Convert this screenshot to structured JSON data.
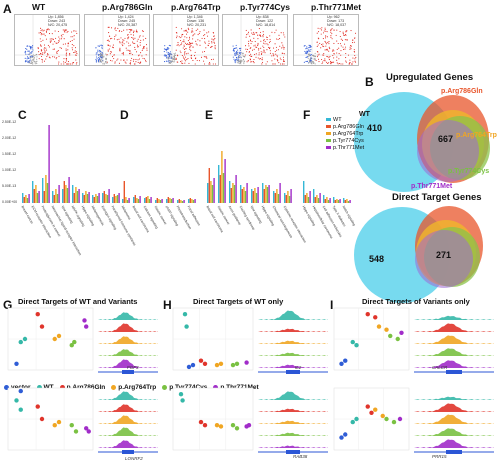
{
  "panelA": {
    "letter": "A",
    "volcanoes": [
      {
        "title": "WT",
        "stats": "Up: 1,856\nDown: 243\nN/C: 20,475"
      },
      {
        "title": "p.Arg786Gln",
        "stats": "Up: 1,424\nDown: 245\nN/C: 20,387"
      },
      {
        "title": "p.Arg764Trp",
        "stats": "Up: 1,346\nDown: 136\nN/C: 20,231"
      },
      {
        "title": "p.Tyr774Cys",
        "stats": "Up: 838\nDown: 122\nN/C: 18,814"
      },
      {
        "title": "p.Thr771Met",
        "stats": "Up: 962\nDown: 173\nN/C: 18,037"
      }
    ]
  },
  "panelB": {
    "letter": "B",
    "venn1": {
      "title": "Upregulated Genes",
      "wt_only": "410",
      "shared": "667",
      "labels": [
        "WT",
        "p.Arg786Gln",
        "p.Arg764Trp",
        "p.Tyr774Cys",
        "p.Thr771Met"
      ]
    },
    "venn2": {
      "title": "Direct Target Genes",
      "wt_only": "548",
      "shared": "271"
    }
  },
  "panelsCDEF": {
    "letters": [
      "C",
      "D",
      "E",
      "F"
    ],
    "legend": [
      "WT",
      "p.Arg786Gln",
      "p.Arg764Trp",
      "p.Tyr774Cys",
      "p.Thr771Met"
    ],
    "colors": [
      "#35b8d6",
      "#e8552b",
      "#f0a623",
      "#7ac142",
      "#a12cc9"
    ],
    "yticks": [
      "2.50E-12",
      "2.00E-12",
      "1.50E-12",
      "1.00E-12",
      "5.00E-13",
      "0.00E+00"
    ],
    "groupsC": [
      "Breast cancer",
      "ECM-receptor interaction",
      "Proteoglycans in cancer",
      "Neuroactive ligand-receptor interaction",
      "Wnt signaling",
      "MAPK signaling",
      "Hippo signaling",
      "Melanogenesis",
      "Estrogen signaling",
      "Parathyroid hormone synthesis"
    ],
    "groupsD": [
      "Melanoma",
      "Basal cell carcinoma",
      "Calcium signaling",
      "Gastric cancer",
      "cAMP signaling",
      "Phototransduction",
      "Focal adhesion"
    ],
    "groupsE": [
      "Basal cell carcinoma",
      "Gastric cancer",
      "Axon guidance",
      "Cushing syndrome",
      "Wnt signaling",
      "Hippo signaling",
      "Chemical carcinogenesis",
      "Cytokine-receptor interaction"
    ],
    "groupsF": [
      "Hippo signaling",
      "Hepatocellular carcinoma",
      "Cell adhesion molecules",
      "Type II diabetes",
      "Notch signaling"
    ]
  },
  "panelG": {
    "letter": "G",
    "title": "Direct Targets of WT and Variants",
    "genes": [
      "FGF3",
      "LONRF2"
    ]
  },
  "panelH": {
    "letter": "H",
    "title": "Direct Targets of WT only",
    "genes": [
      "IL2",
      "RAB38"
    ]
  },
  "panelI": {
    "letter": "I",
    "title": "Direct Targets of Variants only",
    "genes": [
      "CALCR",
      "PRR15"
    ]
  },
  "legend2": [
    "vector",
    "WT",
    "p.Arg786Gln",
    "p.Arg764Trp",
    "p.Tyr774Cys",
    "p.Thr771Met"
  ],
  "legend2_colors": [
    "#2f5dd6",
    "#35b8a8",
    "#e0342b",
    "#f0a623",
    "#7ac142",
    "#a12cc9"
  ]
}
